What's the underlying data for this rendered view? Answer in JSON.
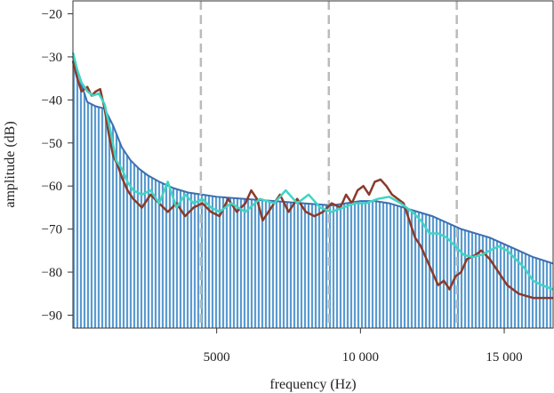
{
  "chart_data": {
    "type": "area",
    "xlabel": "frequency (Hz)",
    "ylabel": "amplitude (dB)",
    "xlim": [
      0,
      16700
    ],
    "ylim": [
      -93,
      -17
    ],
    "x_ticks": [
      {
        "value": 5000,
        "label": "5000"
      },
      {
        "value": 10000,
        "label": "10 000"
      },
      {
        "value": 15000,
        "label": "15 000"
      }
    ],
    "y_ticks": [
      {
        "value": -20,
        "label": "−20"
      },
      {
        "value": -30,
        "label": "−30"
      },
      {
        "value": -40,
        "label": "−40"
      },
      {
        "value": -50,
        "label": "−50"
      },
      {
        "value": -60,
        "label": "−60"
      },
      {
        "value": -70,
        "label": "−70"
      },
      {
        "value": -80,
        "label": "−80"
      },
      {
        "value": -90,
        "label": "−90"
      }
    ],
    "vlines": [
      4450,
      8900,
      13350
    ],
    "grid": false,
    "legend": "none",
    "colors": {
      "spectrum_fill": "#5b9bd0",
      "spectrum_edge": "#3b6fb0",
      "series_1": "#8b3a2a",
      "series_2": "#3fd4c4",
      "vline": "#bbbbbb"
    },
    "series": [
      {
        "role": "spectrum",
        "x": [
          0,
          150,
          300,
          500,
          800,
          1100,
          1400,
          1700,
          2000,
          2300,
          2600,
          3000,
          3500,
          4000,
          4500,
          5000,
          6000,
          7000,
          8000,
          9000,
          9500,
          10000,
          10500,
          11000,
          11500,
          12000,
          12500,
          13000,
          13500,
          14000,
          14500,
          15000,
          15500,
          16000,
          16700
        ],
        "y": [
          -30,
          -33,
          -36.5,
          -40.5,
          -41.5,
          -42,
          -46,
          -51,
          -54,
          -56,
          -57.5,
          -59,
          -60.5,
          -61.5,
          -62,
          -62.5,
          -63,
          -63.5,
          -64,
          -64.5,
          -64,
          -63.5,
          -63.5,
          -64,
          -65,
          -66,
          -67,
          -68.5,
          -70,
          -71,
          -72,
          -73.5,
          -75,
          -76.5,
          -78
        ]
      },
      {
        "role": "line",
        "x": [
          0,
          150,
          300,
          500,
          650,
          800,
          950,
          1100,
          1250,
          1400,
          1550,
          1700,
          1900,
          2100,
          2400,
          2700,
          3000,
          3300,
          3600,
          3900,
          4200,
          4500,
          4800,
          5100,
          5400,
          5700,
          6000,
          6200,
          6400,
          6600,
          6900,
          7200,
          7500,
          7800,
          8100,
          8400,
          8700,
          9000,
          9300,
          9500,
          9700,
          9900,
          10100,
          10300,
          10500,
          10700,
          10900,
          11100,
          11300,
          11500,
          11700,
          11900,
          12100,
          12300,
          12500,
          12700,
          12900,
          13100,
          13300,
          13500,
          13700,
          14000,
          14200,
          14500,
          14800,
          15100,
          15500,
          16000,
          16700
        ],
        "y": [
          -31,
          -35,
          -38,
          -37,
          -39,
          -38,
          -37.5,
          -42,
          -48,
          -53,
          -55,
          -58,
          -61,
          -63,
          -65,
          -62,
          -64,
          -66,
          -64,
          -67,
          -65,
          -64,
          -66,
          -67,
          -63,
          -66,
          -64,
          -61,
          -63,
          -68,
          -65,
          -62,
          -66,
          -63,
          -66,
          -67,
          -66,
          -64,
          -65,
          -62,
          -64,
          -61,
          -60,
          -62,
          -59,
          -58.5,
          -60,
          -62,
          -63,
          -64,
          -68,
          -72,
          -74,
          -77,
          -80,
          -83,
          -82,
          -84,
          -81,
          -80,
          -77,
          -76,
          -75,
          -77,
          -80,
          -83,
          -85,
          -86,
          -86
        ]
      },
      {
        "role": "line",
        "x": [
          0,
          150,
          300,
          500,
          700,
          900,
          1100,
          1300,
          1500,
          1700,
          1900,
          2100,
          2400,
          2700,
          3000,
          3300,
          3600,
          3900,
          4200,
          4500,
          4800,
          5100,
          5500,
          6000,
          6500,
          7000,
          7400,
          7800,
          8200,
          8600,
          9000,
          9400,
          9800,
          10200,
          10600,
          11000,
          11400,
          11800,
          12100,
          12400,
          12700,
          13000,
          13300,
          13600,
          13900,
          14200,
          14500,
          14800,
          15100,
          15400,
          15700,
          16000,
          16300,
          16700
        ],
        "y": [
          -29,
          -33,
          -36,
          -38,
          -39,
          -38.5,
          -41,
          -47,
          -54,
          -56,
          -59,
          -61,
          -62,
          -61,
          -64,
          -59,
          -65,
          -62,
          -64,
          -63,
          -65,
          -66,
          -64,
          -66,
          -63,
          -64,
          -61,
          -64,
          -62,
          -65,
          -66,
          -65,
          -64,
          -64,
          -63,
          -62.5,
          -64,
          -66,
          -68,
          -71,
          -71,
          -72,
          -74,
          -76,
          -76.5,
          -76,
          -75,
          -74,
          -75,
          -77,
          -79,
          -82,
          -83,
          -84
        ]
      }
    ]
  }
}
